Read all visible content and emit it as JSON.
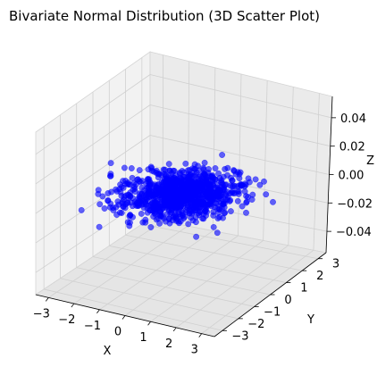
{
  "chart_data": {
    "type": "scatter",
    "projection": "3d",
    "title": "Bivariate Normal Distribution (3D Scatter Plot)",
    "xlabel": "X",
    "ylabel": "Y",
    "zlabel": "Z",
    "xlim": [
      -3.5,
      3.5
    ],
    "ylim": [
      -3.5,
      3.5
    ],
    "zlim": [
      -0.055,
      0.055
    ],
    "x_ticks": [
      "−3",
      "−2",
      "−1",
      "0",
      "1",
      "2",
      "3"
    ],
    "y_ticks": [
      "−3",
      "−2",
      "−1",
      "0",
      "1",
      "2",
      "3"
    ],
    "z_ticks": [
      "−0.04",
      "−0.02",
      "0.00",
      "0.02",
      "0.04"
    ],
    "grid": true,
    "marker_color": "#0000ff",
    "marker_alpha": 0.6,
    "n_points": 1000,
    "x_mean": 0,
    "x_std": 1,
    "y_mean": 0,
    "y_std": 1,
    "z_value": 0
  }
}
